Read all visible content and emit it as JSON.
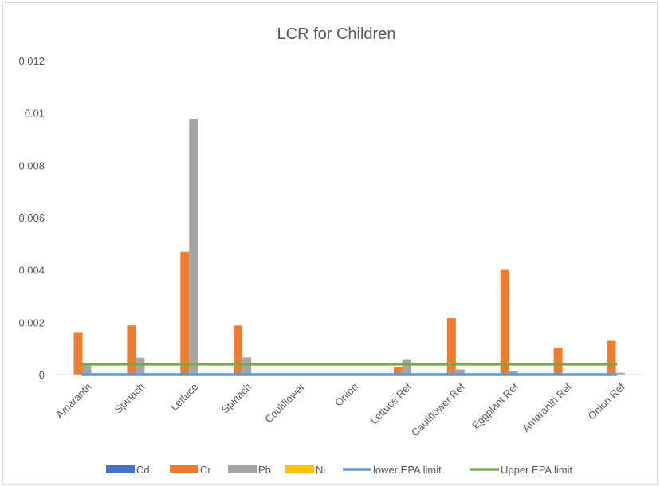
{
  "chart_data": {
    "type": "bar",
    "title": "LCR for Children",
    "categories": [
      "Amaranth",
      "Spinach",
      "Lettuce",
      "Spinach",
      "Couliflower",
      "Onion",
      "Lettuce Ref",
      "Cauliflower Ref",
      "Eggplant Ref",
      "Amaranth Ref",
      "Onion Ref"
    ],
    "ylim": [
      0,
      0.012
    ],
    "yticks": [
      "0",
      "0.002",
      "0.004",
      "0.006",
      "0.008",
      "0.01",
      "0.012"
    ],
    "yticks_values": [
      0,
      0.002,
      0.004,
      0.006,
      0.008,
      0.01,
      0.012
    ],
    "grid": false,
    "legend_position": "bottom",
    "series": [
      {
        "name": "Cd",
        "kind": "bar",
        "color": "#4472c4",
        "values": [
          0,
          0,
          0,
          0,
          0,
          0,
          0,
          0,
          0,
          0,
          0
        ]
      },
      {
        "name": "Cr",
        "kind": "bar",
        "color": "#ed7d31",
        "values": [
          0.0016,
          0.00188,
          0.0047,
          0.00188,
          0,
          0,
          0.00028,
          0.00216,
          0.004,
          0.00103,
          0.00129
        ]
      },
      {
        "name": "Pb",
        "kind": "bar",
        "color": "#a5a5a5",
        "values": [
          0.00042,
          0.00065,
          0.00978,
          0.00066,
          0,
          0,
          0.00056,
          0.0002,
          0.00014,
          0,
          7e-05
        ]
      },
      {
        "name": "Ni",
        "kind": "bar",
        "color": "#ffc000",
        "values": [
          0,
          0,
          0,
          0,
          0,
          0,
          0,
          0,
          0,
          0,
          0
        ]
      },
      {
        "name": "lower EPA limit",
        "kind": "line",
        "color": "#5b9bd5",
        "values": [
          1e-06,
          1e-06,
          1e-06,
          1e-06,
          1e-06,
          1e-06,
          1e-06,
          1e-06,
          1e-06,
          1e-06,
          1e-06
        ]
      },
      {
        "name": "Upper EPA limit",
        "kind": "line",
        "color": "#70ad47",
        "values": [
          0.0004,
          0.0004,
          0.0004,
          0.0004,
          0.0004,
          0.0004,
          0.0004,
          0.0004,
          0.0004,
          0.0004,
          0.0004
        ]
      }
    ]
  }
}
